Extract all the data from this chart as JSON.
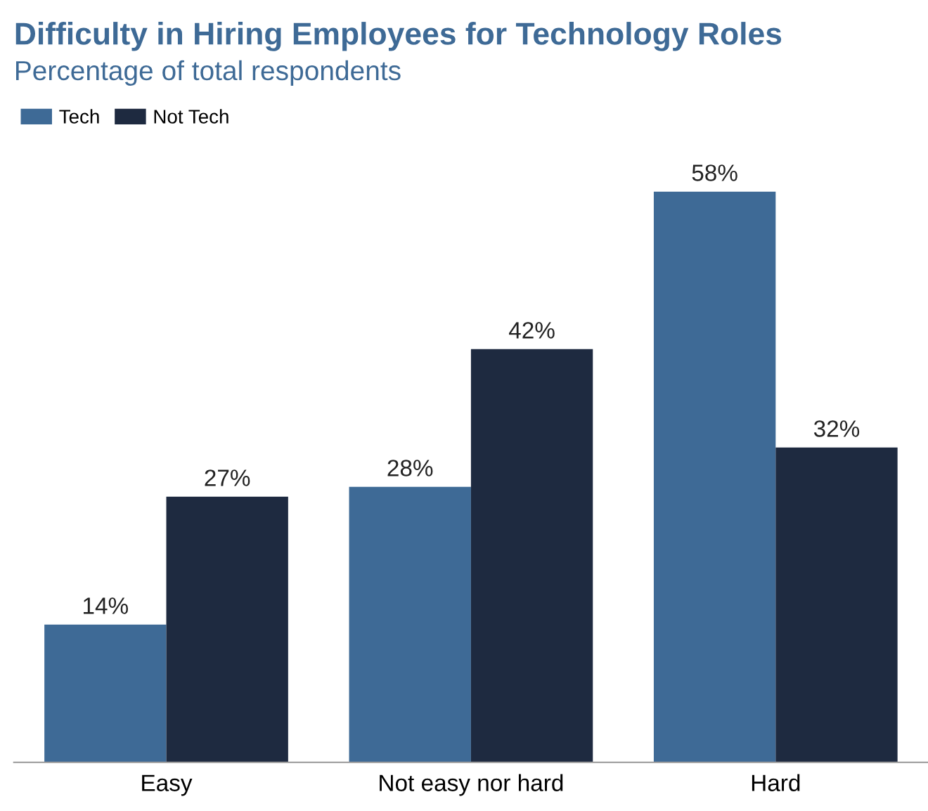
{
  "chart_data": {
    "type": "bar",
    "title": "Difficulty in Hiring Employees for Technology Roles",
    "subtitle": "Percentage of total respondents",
    "categories": [
      "Easy",
      "Not easy nor hard",
      "Hard"
    ],
    "series": [
      {
        "name": "Tech",
        "color": "#3e6a96",
        "values": [
          14,
          28,
          58
        ],
        "value_labels": [
          "14%",
          "28%",
          "58%"
        ]
      },
      {
        "name": "Not Tech",
        "color": "#1e2a40",
        "values": [
          27,
          42,
          32
        ],
        "value_labels": [
          "27%",
          "42%",
          "32%"
        ]
      }
    ],
    "legend": "top left",
    "grid": false
  }
}
